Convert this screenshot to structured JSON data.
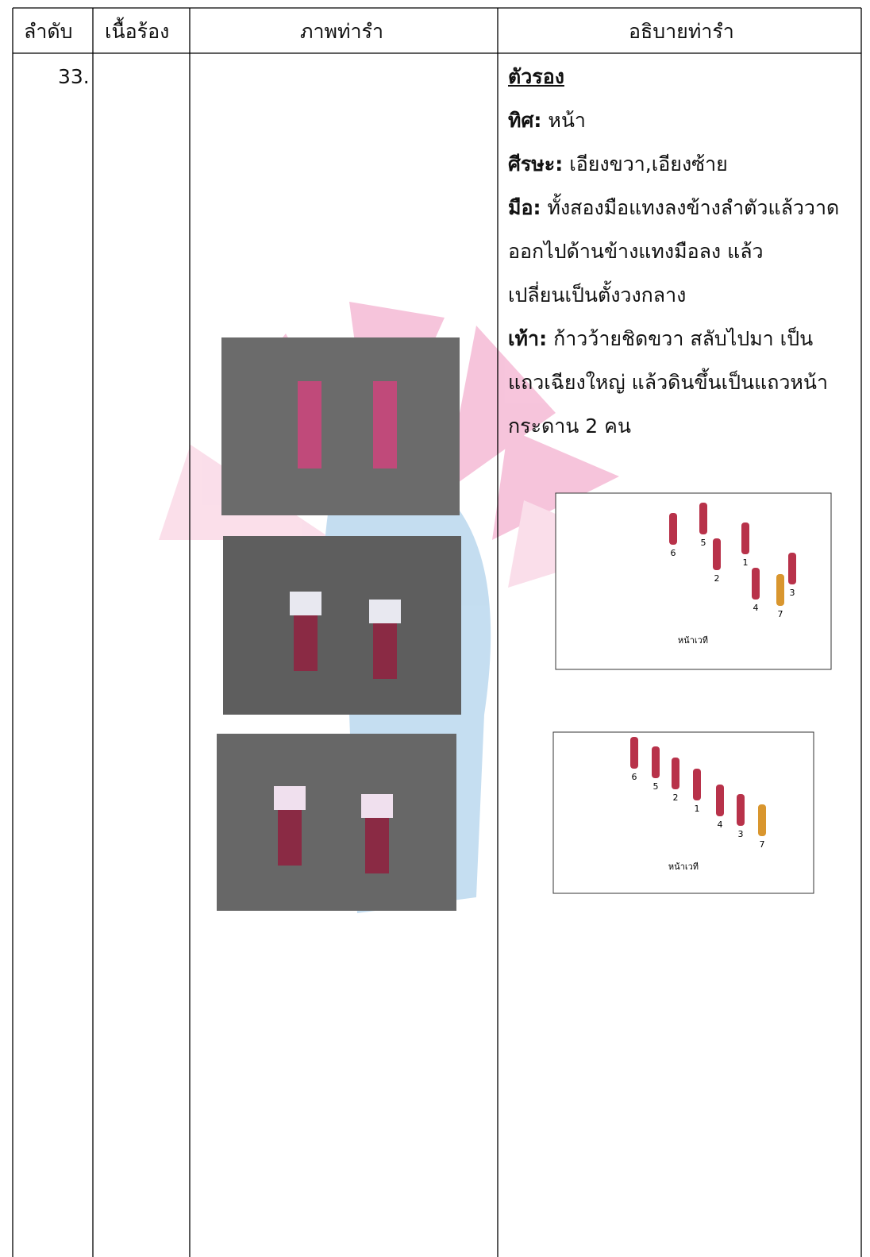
{
  "table": {
    "headers": [
      "ลำดับ",
      "เนื้อร้อง",
      "ภาพท่ารำ",
      "อธิบายท่ารำ"
    ],
    "rows": [
      {
        "number": "33.",
        "description": {
          "heading": "ตัวรอง",
          "items": [
            {
              "label": "ทิศ:",
              "lines": [
                "หน้า"
              ]
            },
            {
              "label": "ศีรษะ:",
              "lines": [
                "เอียงขวา,เอียงซ้าย"
              ]
            },
            {
              "label": "มือ:",
              "lines": [
                "ทั้งสองมือแทงลงข้างลำตัวแล้ววาด",
                "ออกไปด้านข้างแทงมือลง แล้ว",
                "เปลี่ยนเป็นตั้งวงกลาง"
              ]
            },
            {
              "label": "เท้า:",
              "lines": [
                "ก้าวว้ายชิดขวา สลับไปมา เป็น",
                "แถวเฉียงใหญ่ แล้วดินขึ้นเป็นแถวหน้า",
                "กระดาน 2 คน"
              ]
            }
          ]
        },
        "diagrams": [
          {
            "dancers": [
              "6",
              "5",
              "2",
              "1",
              "4",
              "7",
              "3"
            ],
            "stage_label": "หน้าเวที"
          },
          {
            "dancers": [
              "6",
              "5",
              "2",
              "1",
              "4",
              "3",
              "7"
            ],
            "stage_label": "หน้าเวที"
          }
        ]
      }
    ]
  }
}
